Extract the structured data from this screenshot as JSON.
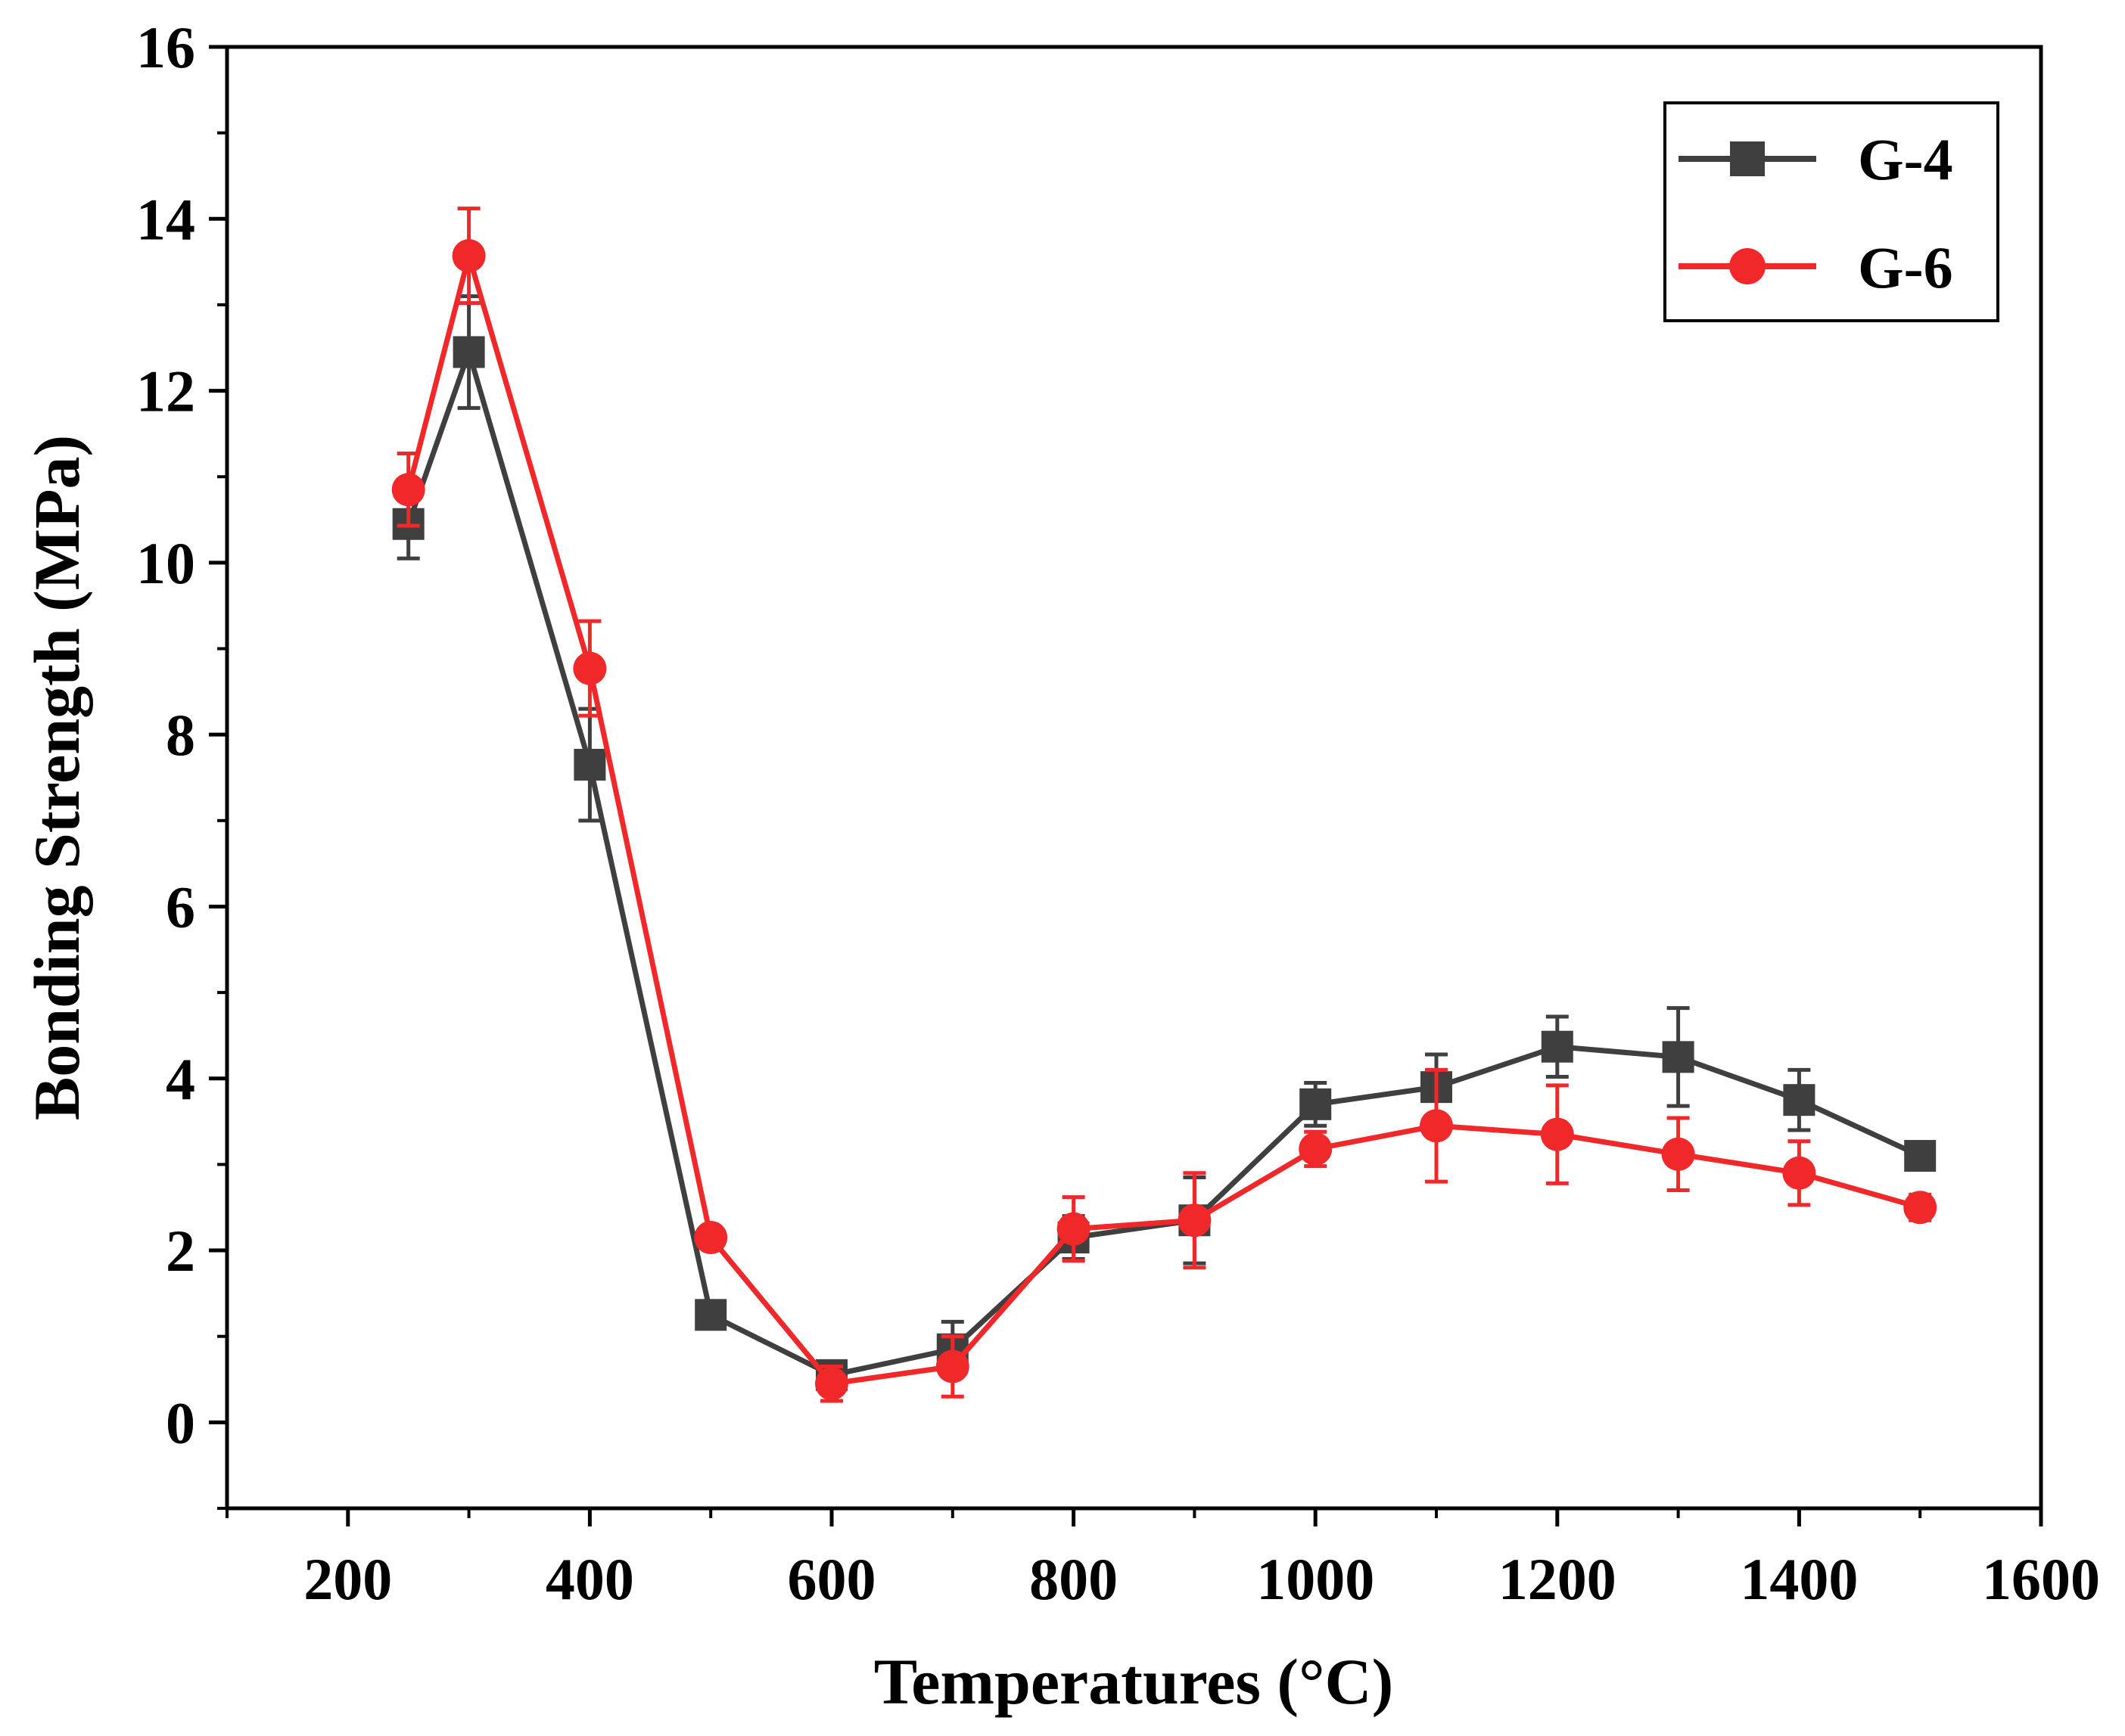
{
  "chart_data": {
    "type": "line",
    "title": "",
    "xlabel": "Temperatures (°C)",
    "ylabel": "Bonding Strength (MPa)",
    "xlim": [
      100,
      1600
    ],
    "ylim": [
      -1,
      16
    ],
    "xticks": [
      200,
      400,
      600,
      800,
      1000,
      1200,
      1400,
      1600
    ],
    "xtick_labels": [
      "200",
      "400",
      "600",
      "800",
      "1000",
      "1200",
      "1400",
      "1600"
    ],
    "yticks": [
      0,
      2,
      4,
      6,
      8,
      10,
      12,
      14,
      16
    ],
    "ytick_labels": [
      "0",
      "2",
      "4",
      "6",
      "8",
      "10",
      "12",
      "14",
      "16"
    ],
    "x": [
      250,
      300,
      400,
      500,
      600,
      700,
      800,
      900,
      1000,
      1100,
      1200,
      1300,
      1400,
      1500
    ],
    "series": [
      {
        "name": "G-4",
        "color": "#3f3f3f",
        "marker": "square",
        "values": [
          10.45,
          12.45,
          7.65,
          1.25,
          0.55,
          0.85,
          2.15,
          2.35,
          3.7,
          3.9,
          4.37,
          4.25,
          3.75,
          3.1
        ],
        "errors": [
          0.4,
          0.65,
          0.65,
          0.12,
          0.15,
          0.32,
          0.25,
          0.5,
          0.25,
          0.38,
          0.35,
          0.57,
          0.35,
          0.12
        ]
      },
      {
        "name": "G-6",
        "color": "#f0282a",
        "marker": "circle",
        "values": [
          10.85,
          13.57,
          8.77,
          2.15,
          0.45,
          0.65,
          2.25,
          2.35,
          3.18,
          3.45,
          3.35,
          3.12,
          2.9,
          2.5
        ],
        "errors": [
          0.42,
          0.55,
          0.55,
          0.1,
          0.2,
          0.35,
          0.37,
          0.55,
          0.2,
          0.65,
          0.57,
          0.42,
          0.37,
          0.15
        ]
      }
    ],
    "legend_position": "top-right",
    "grid": false
  }
}
